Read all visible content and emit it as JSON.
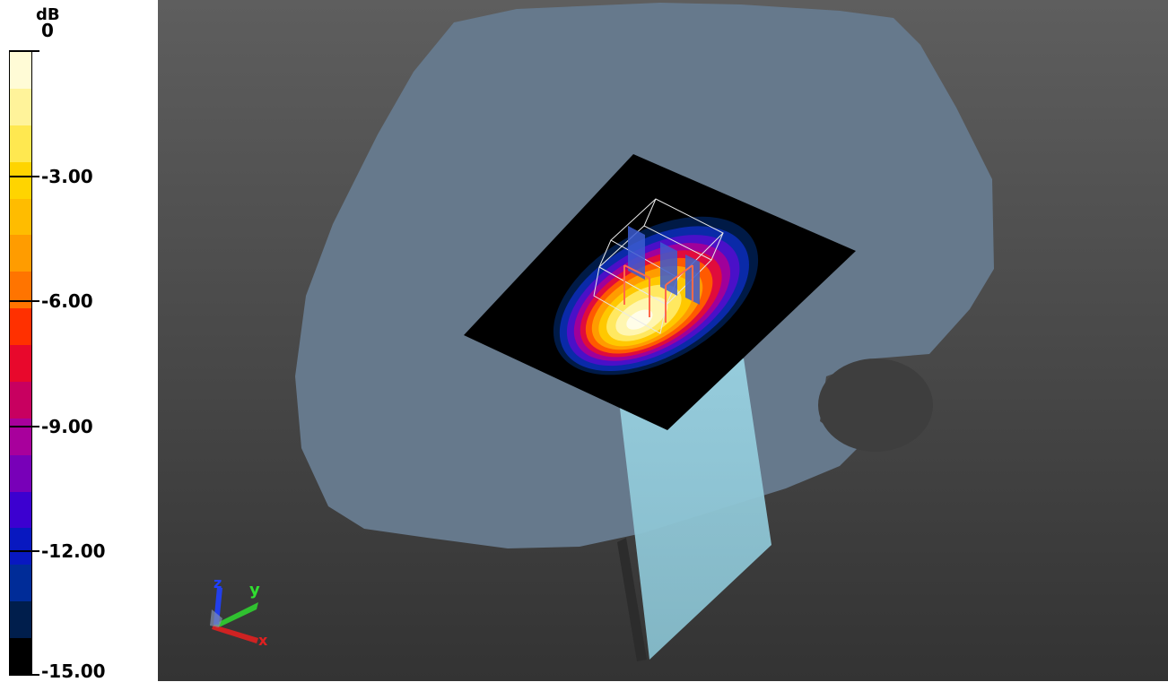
{
  "legend": {
    "unit": "dB",
    "ticks": [
      "0",
      "-3.00",
      "-6.00",
      "-9.00",
      "-12.00",
      "-15.00"
    ],
    "swatches": [
      "#fffbd6",
      "#fff39a",
      "#ffe850",
      "#ffd400",
      "#ffbc00",
      "#ff9c00",
      "#ff7400",
      "#ff3000",
      "#e8082c",
      "#c80060",
      "#a8009c",
      "#7800b8",
      "#3c00d0",
      "#0818c0",
      "#002c98",
      "#001e4c",
      "#000000"
    ]
  },
  "viewport": {
    "background": "#4a4a4a",
    "head_color": "#66798c",
    "plate_color": "#000000",
    "feed_color": "#8fc3d2",
    "axis_triad": {
      "x_label": "x",
      "y_label": "y",
      "z_label": "z",
      "x_color": "#e02020",
      "y_color": "#30e030",
      "z_color": "#2040ff"
    }
  }
}
